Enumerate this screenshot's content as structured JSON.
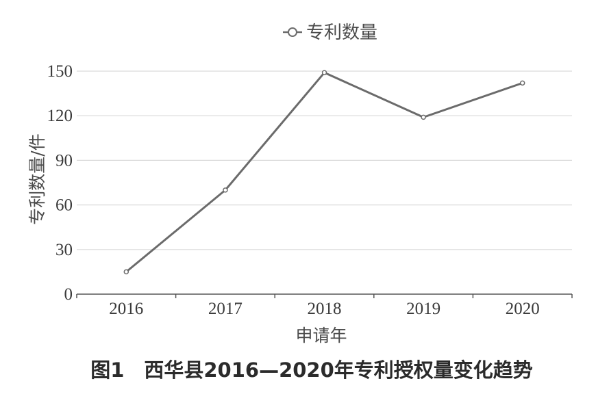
{
  "chart_data": {
    "type": "line",
    "categories": [
      "2016",
      "2017",
      "2018",
      "2019",
      "2020"
    ],
    "series": [
      {
        "name": "专利数量",
        "values": [
          15,
          70,
          149,
          119,
          142
        ],
        "color": "#6b6b6b"
      }
    ],
    "xlabel": "申请年",
    "ylabel": "专利数量/件",
    "yticks": [
      0,
      30,
      60,
      90,
      120,
      150
    ],
    "ylim": [
      0,
      150
    ],
    "grid": true,
    "legend_position": "top-center"
  },
  "caption": "图1　西华县2016—2020年专利授权量变化趋势"
}
